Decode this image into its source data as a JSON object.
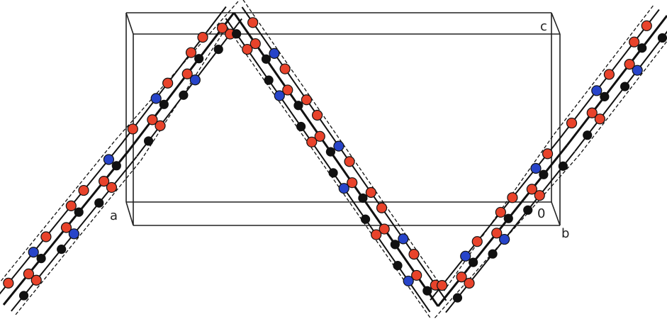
{
  "axis_labels": [
    "c",
    "a",
    "0",
    "b"
  ]
}
